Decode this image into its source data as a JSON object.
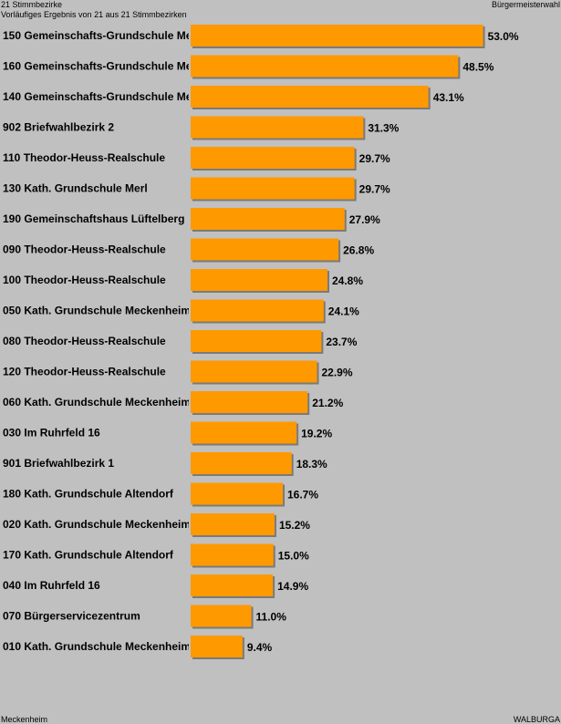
{
  "header": {
    "district_count": "21 Stimmbezirke",
    "progress": "Vorläufiges Ergebnis von 21 aus 21 Stimmbezirken",
    "election": "Bürgermeisterwahl"
  },
  "footer": {
    "municipality": "Meckenheim",
    "candidate": "WALBURGA"
  },
  "colors": {
    "background": "#c0c0c0",
    "bar": "#ff9900",
    "bar_shadow": "#7a7a7a"
  },
  "chart_data": {
    "type": "bar",
    "orientation": "horizontal",
    "title": "",
    "xlabel": "",
    "ylabel": "",
    "xlim": [
      0,
      60
    ],
    "grid": false,
    "categories": [
      "150 Gemeinschafts-Grundschule Me",
      "160 Gemeinschafts-Grundschule Me",
      "140 Gemeinschafts-Grundschule Me",
      "902 Briefwahlbezirk 2",
      "110 Theodor-Heuss-Realschule",
      "130 Kath. Grundschule Merl",
      "190 Gemeinschaftshaus Lüftelberg",
      "090 Theodor-Heuss-Realschule",
      "100 Theodor-Heuss-Realschule",
      "050 Kath. Grundschule Meckenheim",
      "080 Theodor-Heuss-Realschule",
      "120 Theodor-Heuss-Realschule",
      "060 Kath. Grundschule Meckenheim",
      "030 Im Ruhrfeld 16",
      "901 Briefwahlbezirk 1",
      "180 Kath. Grundschule Altendorf",
      "020 Kath. Grundschule Meckenheim",
      "170 Kath. Grundschule Altendorf",
      "040 Im Ruhrfeld 16",
      "070 Bürgerservicezentrum",
      "010 Kath. Grundschule Meckenheim"
    ],
    "values": [
      53.0,
      48.5,
      43.1,
      31.3,
      29.7,
      29.7,
      27.9,
      26.8,
      24.8,
      24.1,
      23.7,
      22.9,
      21.2,
      19.2,
      18.3,
      16.7,
      15.2,
      15.0,
      14.9,
      11.0,
      9.4
    ],
    "value_labels": [
      "53.0%",
      "48.5%",
      "43.1%",
      "31.3%",
      "29.7%",
      "29.7%",
      "27.9%",
      "26.8%",
      "24.8%",
      "24.1%",
      "23.7%",
      "22.9%",
      "21.2%",
      "19.2%",
      "18.3%",
      "16.7%",
      "15.2%",
      "15.0%",
      "14.9%",
      "11.0%",
      "9.4%"
    ]
  }
}
